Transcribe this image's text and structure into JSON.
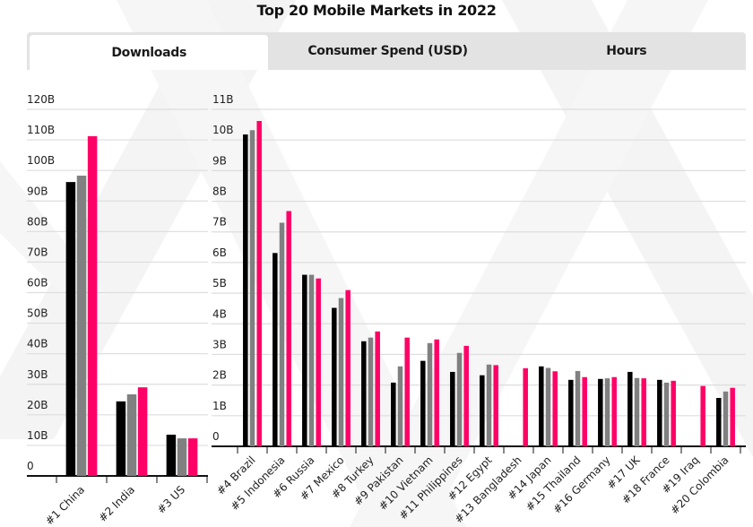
{
  "header": {
    "title": "Top 20 Mobile Markets in 2022"
  },
  "tabs": [
    {
      "label": "Downloads",
      "active": true
    },
    {
      "label": "Consumer Spend (USD)",
      "active": false
    },
    {
      "label": "Hours",
      "active": false
    }
  ],
  "colors": {
    "series_1": "#000000",
    "series_2": "#808080",
    "series_3": "#ff0066",
    "grid": "#dddddd",
    "axis": "#111111"
  },
  "chart_data": [
    {
      "type": "bar",
      "title": "Top 20 Mobile Markets in 2022",
      "xlabel": "",
      "ylabel": "Downloads",
      "ylim": [
        0,
        120
      ],
      "yticks": [
        0,
        10,
        20,
        30,
        40,
        50,
        60,
        70,
        80,
        90,
        100,
        110,
        120
      ],
      "ytick_labels": [
        "0",
        "10B",
        "20B",
        "30B",
        "40B",
        "50B",
        "60B",
        "70B",
        "80B",
        "90B",
        "100B",
        "110B",
        "120B"
      ],
      "grid": true,
      "legend": "none",
      "categories": [
        "#1 China",
        "#2 India",
        "#3 US"
      ],
      "series": [
        {
          "name": "series_1",
          "values": [
            96.2,
            24.4,
            13.5
          ]
        },
        {
          "name": "series_2",
          "values": [
            98.3,
            26.7,
            12.3
          ]
        },
        {
          "name": "series_3",
          "values": [
            111.2,
            29.0,
            12.3
          ]
        }
      ]
    },
    {
      "type": "bar",
      "title": "",
      "xlabel": "",
      "ylabel": "Downloads",
      "ylim": [
        0,
        11
      ],
      "yticks": [
        0,
        1,
        2,
        3,
        4,
        5,
        6,
        7,
        8,
        9,
        10,
        11
      ],
      "ytick_labels": [
        "0",
        "1B",
        "2B",
        "3B",
        "4B",
        "5B",
        "6B",
        "7B",
        "8B",
        "9B",
        "10B",
        "11B"
      ],
      "grid": true,
      "legend": "none",
      "categories": [
        "#4 Brazil",
        "#5 Indonesia",
        "#6 Russia",
        "#7 Mexico",
        "#8 Turkey",
        "#9 Pakistan",
        "#10 Vietnam",
        "#11 Philippines",
        "#12 Egypt",
        "#13 Bangladesh",
        "#14 Japan",
        "#15 Thailand",
        "#16 Germany",
        "#17 UK",
        "#18 France",
        "#19 Iraq",
        "#20 Colombia"
      ],
      "series": [
        {
          "name": "series_1",
          "values": [
            10.18,
            6.31,
            5.6,
            4.52,
            3.43,
            2.08,
            2.79,
            2.43,
            2.32,
            null,
            2.61,
            2.17,
            2.2,
            2.43,
            2.17,
            null,
            1.58
          ]
        },
        {
          "name": "series_2",
          "values": [
            10.32,
            7.3,
            5.6,
            4.84,
            3.55,
            2.61,
            3.37,
            3.05,
            2.67,
            null,
            2.56,
            2.46,
            2.22,
            2.23,
            2.08,
            null,
            1.79
          ]
        },
        {
          "name": "series_3",
          "values": [
            10.62,
            7.68,
            5.48,
            5.1,
            3.75,
            3.55,
            3.49,
            3.28,
            2.65,
            2.55,
            2.45,
            2.26,
            2.26,
            2.22,
            2.14,
            1.97,
            1.91
          ]
        }
      ]
    }
  ]
}
